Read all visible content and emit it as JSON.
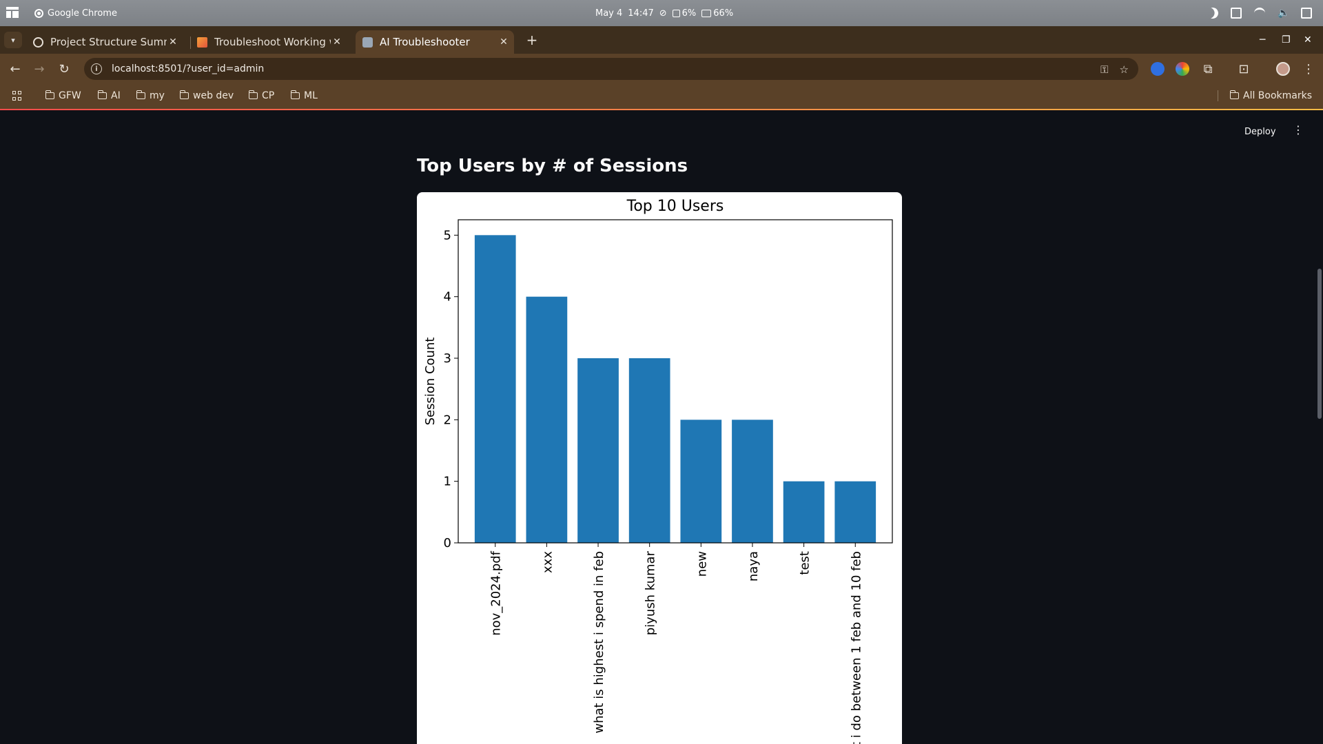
{
  "system_bar": {
    "app_name": "Google Chrome",
    "date": "May 4",
    "time": "14:47",
    "cpu": "6%",
    "battery": "66%"
  },
  "browser": {
    "tabs": [
      {
        "title": "Project Structure Summ",
        "active": false
      },
      {
        "title": "Troubleshoot Working w",
        "active": false
      },
      {
        "title": "AI Troubleshooter",
        "active": true
      }
    ],
    "url": "localhost:8501/?user_id=admin",
    "bookmarks": [
      "GFW",
      "AI",
      "my",
      "web dev",
      "CP",
      "ML"
    ],
    "all_bookmarks_label": "All Bookmarks"
  },
  "app": {
    "deploy_label": "Deploy",
    "heading": "Top Users by # of Sessions"
  },
  "chart_data": {
    "type": "bar",
    "title": "Top 10 Users",
    "ylabel": "Session Count",
    "xlabel": "",
    "categories": [
      "nov_2024.pdf",
      "xxx",
      "what is highest i spend in feb",
      "piyush kumar",
      "new",
      "naya",
      "test",
      "t i do between 1 feb and 10 feb"
    ],
    "values": [
      5,
      4,
      3,
      3,
      2,
      2,
      1,
      1
    ],
    "ylim": [
      0,
      5.25
    ],
    "yticks": [
      0,
      1,
      2,
      3,
      4,
      5
    ],
    "bar_color": "#1f77b4",
    "grid": false
  },
  "colors": {
    "app_background": "#0e1117",
    "browser_frame": "#5a4128",
    "accent_gradient_start": "#ff4b4b",
    "accent_gradient_end": "#ffbd45"
  }
}
